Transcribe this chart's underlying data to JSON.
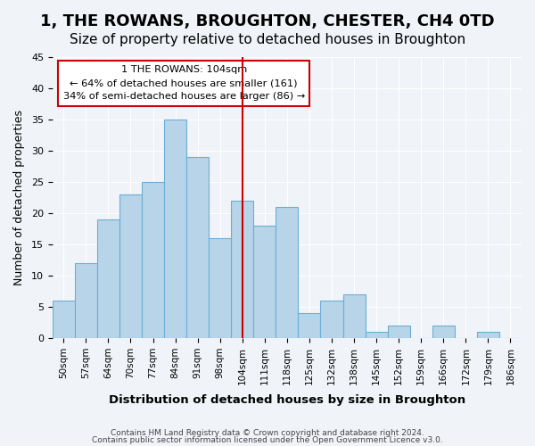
{
  "title": "1, THE ROWANS, BROUGHTON, CHESTER, CH4 0TD",
  "subtitle": "Size of property relative to detached houses in Broughton",
  "xlabel": "Distribution of detached houses by size in Broughton",
  "ylabel": "Number of detached properties",
  "footer_line1": "Contains HM Land Registry data © Crown copyright and database right 2024.",
  "footer_line2": "Contains public sector information licensed under the Open Government Licence v3.0.",
  "bar_labels": [
    "50sqm",
    "57sqm",
    "64sqm",
    "70sqm",
    "77sqm",
    "84sqm",
    "91sqm",
    "98sqm",
    "104sqm",
    "111sqm",
    "118sqm",
    "125sqm",
    "132sqm",
    "138sqm",
    "145sqm",
    "152sqm",
    "159sqm",
    "166sqm",
    "172sqm",
    "179sqm",
    "186sqm"
  ],
  "bar_values": [
    6,
    12,
    19,
    23,
    25,
    35,
    29,
    16,
    22,
    18,
    21,
    4,
    6,
    7,
    1,
    2,
    0,
    2,
    0,
    1,
    0
  ],
  "bar_color": "#b8d4e8",
  "bar_edge_color": "#6aaed6",
  "vline_x": 8,
  "vline_color": "#cc0000",
  "ylim": [
    0,
    45
  ],
  "yticks": [
    0,
    5,
    10,
    15,
    20,
    25,
    30,
    35,
    40,
    45
  ],
  "legend_title": "1 THE ROWANS: 104sqm",
  "legend_line1": "← 64% of detached houses are smaller (161)",
  "legend_line2": "34% of semi-detached houses are larger (86) →",
  "legend_box_color": "#ffffff",
  "legend_border_color": "#cc0000",
  "background_color": "#f0f4f8",
  "grid_color": "#ffffff",
  "title_fontsize": 13,
  "subtitle_fontsize": 11
}
